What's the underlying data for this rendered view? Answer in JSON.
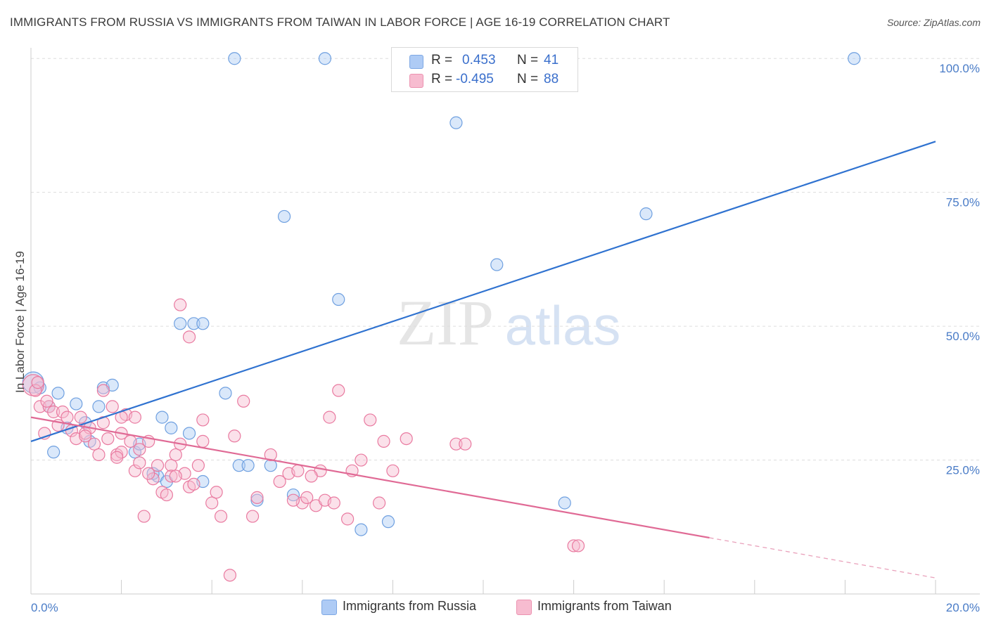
{
  "title": "IMMIGRANTS FROM RUSSIA VS IMMIGRANTS FROM TAIWAN IN LABOR FORCE | AGE 16-19 CORRELATION CHART",
  "source": "Source: ZipAtlas.com",
  "watermark": {
    "zip": "ZIP",
    "atlas": "atlas"
  },
  "legend": {
    "r_label": "R =",
    "n_label": "N =",
    "rows": [
      {
        "r": "0.453",
        "n": "41",
        "swatch": "#aecbf5"
      },
      {
        "r": "-0.495",
        "n": "88",
        "swatch": "#f7bcd0"
      }
    ]
  },
  "bottom_legend": [
    {
      "label": "Immigrants from Russia",
      "color": "#aecbf5"
    },
    {
      "label": "Immigrants from Taiwan",
      "color": "#f7bcd0"
    }
  ],
  "chart_data": {
    "type": "scatter",
    "title": "IMMIGRANTS FROM RUSSIA VS IMMIGRANTS FROM TAIWAN IN LABOR FORCE | AGE 16-19 CORRELATION CHART",
    "xlabel": "",
    "ylabel": "In Labor Force | Age 16-19",
    "xlim": [
      0,
      20
    ],
    "ylim": [
      0,
      102
    ],
    "x_tick_labels": [
      "0.0%",
      "20.0%"
    ],
    "y_ticks": [
      25,
      50,
      75,
      100
    ],
    "y_tick_labels": [
      "25.0%",
      "50.0%",
      "75.0%",
      "100.0%"
    ],
    "grid": true,
    "series": [
      {
        "name": "Immigrants from Russia",
        "color": "#6fa0e0",
        "fill": "#aecbf5",
        "r": 0.453,
        "n": 41,
        "trend": {
          "x": [
            0,
            20
          ],
          "y": [
            28.5,
            84.5
          ],
          "dash_from": null
        },
        "points": [
          [
            0.05,
            39.5
          ],
          [
            0.2,
            38.5
          ],
          [
            0.4,
            35
          ],
          [
            0.6,
            37.5
          ],
          [
            0.5,
            26.5
          ],
          [
            0.8,
            31
          ],
          [
            1.0,
            35.5
          ],
          [
            1.2,
            32
          ],
          [
            1.3,
            28.5
          ],
          [
            1.5,
            35
          ],
          [
            1.6,
            38.5
          ],
          [
            1.8,
            39
          ],
          [
            2.3,
            26.5
          ],
          [
            2.4,
            28
          ],
          [
            2.8,
            22
          ],
          [
            2.9,
            33
          ],
          [
            3.1,
            31
          ],
          [
            3.3,
            50.5
          ],
          [
            3.6,
            50.5
          ],
          [
            3.8,
            50.5
          ],
          [
            3.5,
            30
          ],
          [
            3.8,
            21
          ],
          [
            4.3,
            37.5
          ],
          [
            4.5,
            100
          ],
          [
            4.6,
            24
          ],
          [
            4.8,
            24
          ],
          [
            5.0,
            17.5
          ],
          [
            5.3,
            24
          ],
          [
            5.6,
            70.5
          ],
          [
            5.8,
            18.5
          ],
          [
            6.5,
            100
          ],
          [
            6.8,
            55
          ],
          [
            7.3,
            12
          ],
          [
            7.9,
            13.5
          ],
          [
            9.4,
            88
          ],
          [
            10.3,
            61.5
          ],
          [
            11.8,
            17
          ],
          [
            13.6,
            71
          ],
          [
            18.2,
            100
          ],
          [
            3.0,
            21
          ],
          [
            2.7,
            22.5
          ]
        ]
      },
      {
        "name": "Immigrants from Taiwan",
        "color": "#e97aa0",
        "fill": "#f7bcd0",
        "r": -0.495,
        "n": 88,
        "trend": {
          "x": [
            0,
            20
          ],
          "y": [
            33,
            3
          ],
          "dash_from": 15
        },
        "points": [
          [
            0.05,
            39
          ],
          [
            0.1,
            38
          ],
          [
            0.2,
            35
          ],
          [
            0.3,
            30
          ],
          [
            0.4,
            35
          ],
          [
            0.5,
            34
          ],
          [
            0.6,
            31.5
          ],
          [
            0.7,
            34
          ],
          [
            0.8,
            33
          ],
          [
            0.9,
            30.5
          ],
          [
            1.0,
            29
          ],
          [
            1.1,
            33
          ],
          [
            1.2,
            30
          ],
          [
            1.3,
            31
          ],
          [
            1.4,
            28
          ],
          [
            1.5,
            26
          ],
          [
            1.6,
            38
          ],
          [
            1.6,
            32
          ],
          [
            1.7,
            29
          ],
          [
            1.8,
            35
          ],
          [
            1.9,
            26
          ],
          [
            2.0,
            26.5
          ],
          [
            2.0,
            30
          ],
          [
            2.1,
            33.5
          ],
          [
            2.2,
            28.5
          ],
          [
            2.3,
            23
          ],
          [
            2.3,
            33
          ],
          [
            2.4,
            24.5
          ],
          [
            2.5,
            14.5
          ],
          [
            2.6,
            28.5
          ],
          [
            2.7,
            21.5
          ],
          [
            2.8,
            24
          ],
          [
            2.9,
            19
          ],
          [
            3.0,
            18.5
          ],
          [
            3.1,
            24
          ],
          [
            3.1,
            22
          ],
          [
            3.2,
            26
          ],
          [
            3.3,
            28
          ],
          [
            3.4,
            22.5
          ],
          [
            3.5,
            20
          ],
          [
            3.6,
            20.5
          ],
          [
            3.7,
            24
          ],
          [
            3.8,
            32.5
          ],
          [
            3.3,
            54
          ],
          [
            3.5,
            48
          ],
          [
            3.8,
            28.5
          ],
          [
            4.0,
            17
          ],
          [
            4.2,
            14.5
          ],
          [
            4.4,
            3.5
          ],
          [
            4.5,
            29.5
          ],
          [
            4.7,
            36
          ],
          [
            4.9,
            14.5
          ],
          [
            5.0,
            18
          ],
          [
            5.3,
            26
          ],
          [
            5.5,
            21
          ],
          [
            5.7,
            22.5
          ],
          [
            5.9,
            23
          ],
          [
            6.0,
            17
          ],
          [
            6.1,
            18
          ],
          [
            6.3,
            16.5
          ],
          [
            6.4,
            23
          ],
          [
            6.5,
            17.5
          ],
          [
            6.6,
            33
          ],
          [
            6.7,
            17
          ],
          [
            6.8,
            38
          ],
          [
            7.0,
            14
          ],
          [
            7.1,
            23
          ],
          [
            7.3,
            25
          ],
          [
            7.5,
            32.5
          ],
          [
            7.7,
            17
          ],
          [
            7.8,
            28.5
          ],
          [
            8.0,
            23
          ],
          [
            8.3,
            29
          ],
          [
            9.4,
            28
          ],
          [
            9.6,
            28
          ],
          [
            12.0,
            9
          ],
          [
            12.1,
            9
          ],
          [
            1.2,
            29.5
          ],
          [
            2.0,
            33
          ],
          [
            2.4,
            27
          ],
          [
            1.9,
            25.5
          ],
          [
            3.2,
            22
          ],
          [
            0.35,
            36
          ],
          [
            0.15,
            39.5
          ],
          [
            2.6,
            22.5
          ],
          [
            4.1,
            19
          ],
          [
            5.8,
            17.5
          ],
          [
            6.2,
            22
          ]
        ]
      }
    ]
  }
}
